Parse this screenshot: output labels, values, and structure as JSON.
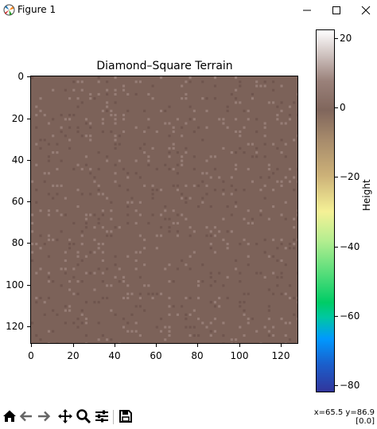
{
  "window": {
    "title": "Figure 1",
    "app_icon": "matplotlib-icon",
    "controls": {
      "minimize_icon": "minimize-icon",
      "maximize_icon": "maximize-icon",
      "close_icon": "close-icon"
    }
  },
  "chart_data": {
    "type": "heatmap",
    "title": "Diamond–Square Terrain",
    "grid_size": [
      129,
      129
    ],
    "x_ticks": [
      "0",
      "20",
      "40",
      "60",
      "80",
      "100",
      "120"
    ],
    "y_ticks": [
      "0",
      "20",
      "40",
      "60",
      "80",
      "100",
      "120"
    ],
    "xlim": [
      -0.5,
      128.5
    ],
    "ylim": [
      128.5,
      -0.5
    ],
    "y_inverted": true,
    "colormap": "terrain",
    "base_color": "#7c6259",
    "colorbar": {
      "label": "Height",
      "range": [
        -82,
        22.5
      ],
      "ticks": [
        "20",
        "0",
        "−20",
        "−40",
        "−60",
        "−80"
      ],
      "tick_values": [
        20,
        0,
        -20,
        -40,
        -60,
        -80
      ],
      "orientation": "vertical"
    },
    "description_values": {
      "dominant_height_approx": -1,
      "min_height_approx": -82,
      "max_height_approx": 22
    }
  },
  "toolbar": {
    "buttons": [
      {
        "name": "home-button",
        "icon": "home-icon"
      },
      {
        "name": "back-button",
        "icon": "arrow-left-icon"
      },
      {
        "name": "forward-button",
        "icon": "arrow-right-icon"
      },
      {
        "name": "pan-button",
        "icon": "move-icon"
      },
      {
        "name": "zoom-button",
        "icon": "magnifier-icon"
      },
      {
        "name": "configure-subplots-button",
        "icon": "sliders-icon"
      },
      {
        "name": "save-button",
        "icon": "floppy-icon"
      }
    ],
    "coords_line1": "x=65.5 y=86.9",
    "coords_line2": "[0.0]"
  }
}
